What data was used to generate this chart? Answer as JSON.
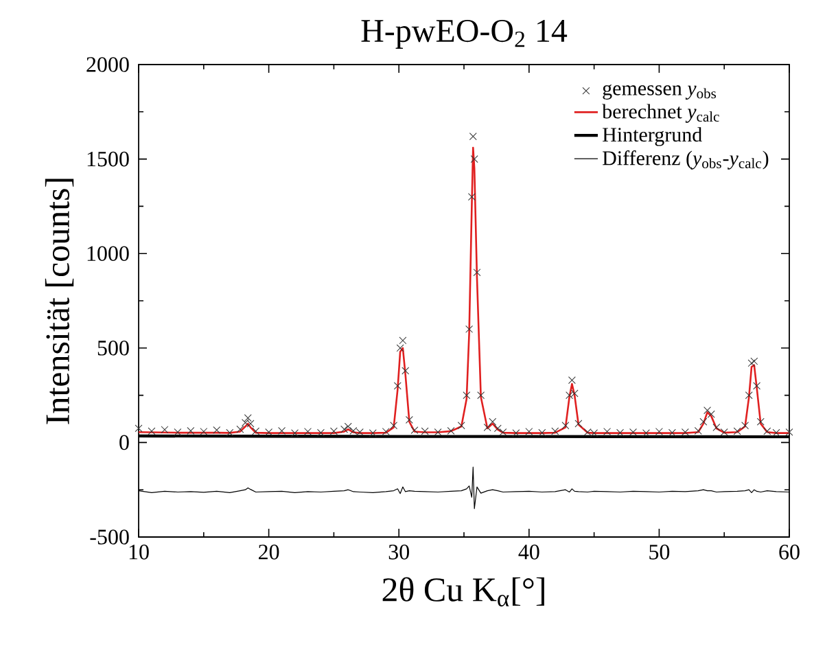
{
  "chart_data": {
    "type": "line",
    "title": "H-pwEO-O$_{2}$ 14",
    "xlabel": "2θ Cu K$_{α}$[°]",
    "ylabel": "Intensität [counts]",
    "xlim": [
      10,
      60
    ],
    "xticks": [
      10,
      20,
      30,
      40,
      50,
      60
    ],
    "ylim": [
      -500,
      2000
    ],
    "yticks": [
      -500,
      0,
      500,
      1000,
      1500,
      2000
    ],
    "grid": false,
    "legend": "top right",
    "x": [
      10,
      11,
      12,
      13,
      14,
      15,
      16,
      17,
      17.8,
      18.2,
      18.4,
      18.6,
      19,
      20,
      21,
      22,
      23,
      24,
      25,
      25.8,
      26.1,
      26.5,
      27,
      28,
      29,
      29.6,
      29.9,
      30.1,
      30.3,
      30.5,
      30.8,
      31.2,
      32,
      33,
      34,
      34.8,
      35.2,
      35.4,
      35.6,
      35.7,
      35.8,
      36.0,
      36.3,
      36.8,
      37.2,
      37.6,
      38,
      39,
      40,
      41,
      42,
      42.8,
      43.1,
      43.3,
      43.5,
      43.8,
      44.5,
      45,
      46,
      47,
      48,
      49,
      50,
      51,
      52,
      53,
      53.4,
      53.7,
      54.0,
      54.4,
      55,
      56,
      56.6,
      56.9,
      57.1,
      57.3,
      57.5,
      57.8,
      58.3,
      59,
      60
    ],
    "series": [
      {
        "name": "gemessen *y*$_{obs}$",
        "type": "scatter",
        "marker": "cross",
        "color": "#333333",
        "values": [
          75,
          60,
          68,
          55,
          62,
          58,
          66,
          52,
          70,
          105,
          130,
          100,
          60,
          55,
          62,
          50,
          58,
          52,
          60,
          70,
          85,
          62,
          55,
          50,
          58,
          90,
          300,
          500,
          540,
          380,
          120,
          65,
          60,
          55,
          62,
          90,
          250,
          600,
          1300,
          1620,
          1500,
          900,
          250,
          80,
          110,
          75,
          55,
          50,
          58,
          52,
          60,
          90,
          250,
          330,
          260,
          100,
          55,
          50,
          58,
          52,
          55,
          50,
          58,
          52,
          55,
          62,
          110,
          170,
          150,
          80,
          55,
          60,
          90,
          250,
          420,
          430,
          300,
          110,
          60,
          52,
          55
        ]
      },
      {
        "name": "berechnet *y*$_{calc}$",
        "color": "#e02020",
        "values": [
          55,
          54,
          53,
          52,
          52,
          52,
          52,
          51,
          58,
          85,
          100,
          80,
          52,
          50,
          50,
          50,
          50,
          50,
          50,
          58,
          70,
          54,
          50,
          50,
          52,
          80,
          280,
          480,
          500,
          360,
          110,
          58,
          54,
          54,
          60,
          85,
          230,
          580,
          1250,
          1560,
          1450,
          870,
          240,
          75,
          100,
          68,
          52,
          50,
          50,
          50,
          52,
          80,
          240,
          310,
          250,
          95,
          52,
          50,
          50,
          50,
          50,
          50,
          50,
          50,
          50,
          55,
          100,
          160,
          140,
          75,
          52,
          55,
          85,
          240,
          400,
          410,
          290,
          100,
          55,
          50,
          50
        ]
      },
      {
        "name": "Hintergrund",
        "color": "#000000",
        "x": [
          10,
          20,
          30,
          40,
          50,
          60
        ],
        "values": [
          35,
          33,
          32,
          32,
          31,
          30
        ]
      },
      {
        "name": "Differenz (*y*$_{obs}$-*y*$_{calc}$)",
        "color": "#000000",
        "values": [
          -255,
          -265,
          -258,
          -262,
          -260,
          -263,
          -258,
          -265,
          -255,
          -250,
          -240,
          -248,
          -262,
          -260,
          -258,
          -265,
          -260,
          -262,
          -258,
          -255,
          -250,
          -260,
          -262,
          -265,
          -260,
          -255,
          -245,
          -270,
          -235,
          -260,
          -255,
          -258,
          -260,
          -262,
          -258,
          -255,
          -245,
          -230,
          -290,
          -130,
          -350,
          -235,
          -268,
          -255,
          -250,
          -255,
          -262,
          -260,
          -258,
          -262,
          -260,
          -250,
          -262,
          -245,
          -258,
          -260,
          -262,
          -258,
          -260,
          -262,
          -258,
          -260,
          -262,
          -258,
          -260,
          -255,
          -250,
          -255,
          -255,
          -262,
          -260,
          -258,
          -255,
          -250,
          -265,
          -250,
          -258,
          -262,
          -255,
          -260,
          -262
        ]
      }
    ]
  }
}
